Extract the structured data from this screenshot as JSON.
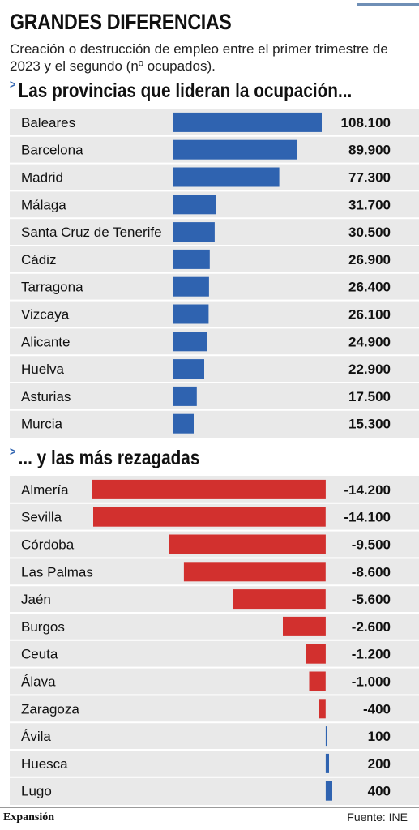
{
  "header": {
    "title": "GRANDES DIFERENCIAS",
    "subtitle": "Creación o destrucción de empleo entre el primer trimestre de 2023 y el segundo (nº ocupados)."
  },
  "colors": {
    "positive_bar": "#2f63b0",
    "negative_bar": "#d2302e",
    "panel_background": "#e9e9e9",
    "section_marker": "#2f63b0"
  },
  "sections": {
    "top_heading": "Las provincias que lideran la ocupación...",
    "top_marker": ">",
    "bottom_heading": "... y las más rezagadas",
    "bottom_marker": ">"
  },
  "chart_data": [
    {
      "type": "bar",
      "orientation": "horizontal",
      "title": "Las provincias que lideran la ocupación...",
      "categories": [
        "Baleares",
        "Barcelona",
        "Madrid",
        "Málaga",
        "Santa Cruz de Tenerife",
        "Cádiz",
        "Tarragona",
        "Vizcaya",
        "Alicante",
        "Huelva",
        "Asturias",
        "Murcia"
      ],
      "values": [
        108100,
        89900,
        77300,
        31700,
        30500,
        26900,
        26400,
        26100,
        24900,
        22900,
        17500,
        15300
      ],
      "value_labels": [
        "108.100",
        "89.900",
        "77.300",
        "31.700",
        "30.500",
        "26.900",
        "26.400",
        "26.100",
        "24.900",
        "22.900",
        "17.500",
        "15.300"
      ],
      "xlim": [
        0,
        108100
      ]
    },
    {
      "type": "bar",
      "orientation": "horizontal",
      "title": "... y las más rezagadas",
      "categories": [
        "Almería",
        "Sevilla",
        "Córdoba",
        "Las Palmas",
        "Jaén",
        "Burgos",
        "Ceuta",
        "Álava",
        "Zaragoza",
        "Ávila",
        "Huesca",
        "Lugo"
      ],
      "values": [
        -14200,
        -14100,
        -9500,
        -8600,
        -5600,
        -2600,
        -1200,
        -1000,
        -400,
        100,
        200,
        400
      ],
      "value_labels": [
        "-14.200",
        "-14.100",
        "-9.500",
        "-8.600",
        "-5.600",
        "-2.600",
        "-1.200",
        "-1.000",
        "-400",
        "100",
        "200",
        "400"
      ],
      "xlim": [
        -14200,
        400
      ]
    }
  ],
  "footer": {
    "brand": "Expansión",
    "source": "Fuente: INE"
  }
}
